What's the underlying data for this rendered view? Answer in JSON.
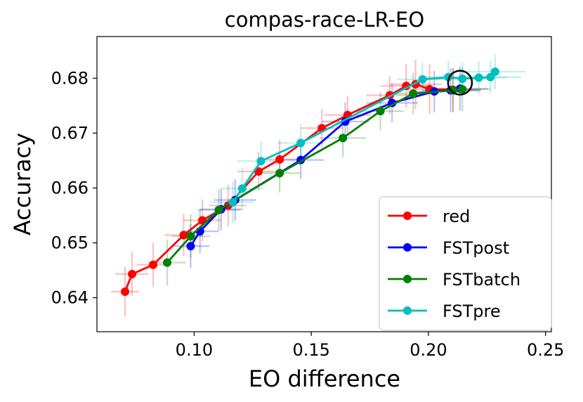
{
  "chart_data": {
    "type": "line",
    "title": "compas-race-LR-EO",
    "xlabel": "EO difference",
    "ylabel": "Accuracy",
    "xlim": [
      0.0585,
      0.2525
    ],
    "ylim": [
      0.6338,
      0.6876
    ],
    "xticks": [
      0.1,
      0.15,
      0.2,
      0.25
    ],
    "xtick_labels": [
      "0.10",
      "0.15",
      "0.20",
      "0.25"
    ],
    "yticks": [
      0.64,
      0.65,
      0.66,
      0.67,
      0.68
    ],
    "ytick_labels": [
      "0.64",
      "0.65",
      "0.66",
      "0.67",
      "0.68"
    ],
    "legend_position": "lower-right",
    "highlight_circle": {
      "x": 0.2135,
      "y": 0.6792
    },
    "series": [
      {
        "name": "red",
        "color": "#ff0000",
        "x": [
          0.0705,
          0.0735,
          0.0825,
          0.0955,
          0.1035,
          0.1145,
          0.1275,
          0.1365,
          0.1545,
          0.1655,
          0.1835,
          0.1905,
          0.1945,
          0.2005,
          0.2105
        ],
        "y": [
          0.6411,
          0.6443,
          0.646,
          0.6514,
          0.6541,
          0.6568,
          0.663,
          0.6652,
          0.6709,
          0.6733,
          0.6769,
          0.6786,
          0.6789,
          0.678,
          0.6779
        ],
        "xerr": [
          0.006,
          0.007,
          0.007,
          0.008,
          0.008,
          0.008,
          0.009,
          0.009,
          0.009,
          0.01,
          0.01,
          0.011,
          0.011,
          0.011,
          0.012
        ],
        "yerr": [
          0.0045,
          0.004,
          0.004,
          0.0038,
          0.0038,
          0.0038,
          0.0035,
          0.0035,
          0.0035,
          0.0035,
          0.0035,
          0.004,
          0.0045,
          0.0045,
          0.004
        ]
      },
      {
        "name": "FSTpost",
        "color": "#0000ff",
        "x": [
          0.0985,
          0.1025,
          0.1115,
          0.1175,
          0.1455,
          0.1645,
          0.1845,
          0.2025,
          0.2095,
          0.2135
        ],
        "y": [
          0.6494,
          0.6521,
          0.6561,
          0.6578,
          0.6651,
          0.6721,
          0.6755,
          0.6776,
          0.6778,
          0.6781
        ],
        "xerr": [
          0.008,
          0.008,
          0.009,
          0.009,
          0.01,
          0.01,
          0.011,
          0.011,
          0.012,
          0.012
        ],
        "yerr": [
          0.004,
          0.004,
          0.0038,
          0.0038,
          0.0035,
          0.0035,
          0.0035,
          0.0038,
          0.004,
          0.004
        ]
      },
      {
        "name": "FSTbatch",
        "color": "#008000",
        "x": [
          0.0885,
          0.0985,
          0.1105,
          0.1365,
          0.1635,
          0.1795,
          0.1935,
          0.2105,
          0.2145
        ],
        "y": [
          0.6464,
          0.6512,
          0.656,
          0.6627,
          0.6691,
          0.674,
          0.6772,
          0.6778,
          0.678
        ],
        "xerr": [
          0.008,
          0.008,
          0.009,
          0.009,
          0.01,
          0.01,
          0.011,
          0.012,
          0.012
        ],
        "yerr": [
          0.0042,
          0.004,
          0.0038,
          0.0035,
          0.0035,
          0.0035,
          0.0038,
          0.004,
          0.004
        ]
      },
      {
        "name": "FSTpre",
        "color": "#00bfbf",
        "x": [
          0.1165,
          0.1205,
          0.1285,
          0.1455,
          0.1975,
          0.2085,
          0.2145,
          0.2215,
          0.2265,
          0.2285
        ],
        "y": [
          0.6574,
          0.6599,
          0.6649,
          0.6682,
          0.6798,
          0.6802,
          0.6799,
          0.6801,
          0.6802,
          0.6812
        ],
        "xerr": [
          0.009,
          0.009,
          0.01,
          0.01,
          0.011,
          0.012,
          0.012,
          0.012,
          0.013,
          0.013
        ],
        "yerr": [
          0.0038,
          0.0038,
          0.0035,
          0.0035,
          0.003,
          0.003,
          0.003,
          0.003,
          0.003,
          0.0032
        ]
      }
    ]
  }
}
